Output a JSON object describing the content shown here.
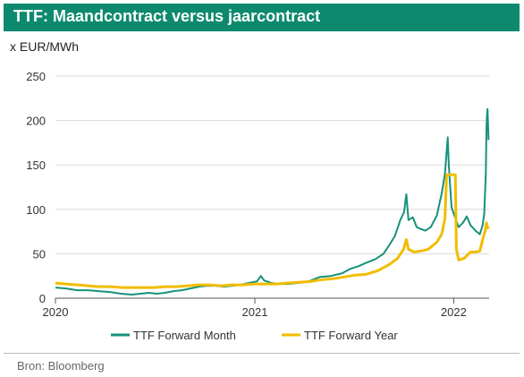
{
  "title": "TTF: Maandcontract versus jaarcontract",
  "unit_label": "x EUR/MWh",
  "source": "Bron: Bloomberg",
  "colors": {
    "accent": "#0d8a6e",
    "month": "#16917a",
    "year": "#f2bc00",
    "grid": "#d9d9d9"
  },
  "chart_data": {
    "type": "line",
    "title": "TTF: Maandcontract versus jaarcontract",
    "ylabel": "x EUR/MWh",
    "xlabel": "",
    "ylim": [
      0,
      250
    ],
    "xlim": [
      "2020-01-01",
      "2022-03-07"
    ],
    "yticks": [
      0,
      50,
      100,
      150,
      200,
      250
    ],
    "xticks": [
      "2020",
      "2021",
      "2022"
    ],
    "xtick_dates": [
      "2020-01-01",
      "2021-01-01",
      "2022-01-01"
    ],
    "grid": true,
    "legend": "bottom",
    "series": [
      {
        "name": "TTF Forward Month",
        "key": "month",
        "points": [
          [
            "2020-01-01",
            12
          ],
          [
            "2020-01-20",
            11
          ],
          [
            "2020-02-10",
            9
          ],
          [
            "2020-03-01",
            9
          ],
          [
            "2020-03-20",
            8
          ],
          [
            "2020-04-10",
            7
          ],
          [
            "2020-05-01",
            5
          ],
          [
            "2020-05-20",
            4
          ],
          [
            "2020-06-05",
            5
          ],
          [
            "2020-06-20",
            6
          ],
          [
            "2020-07-05",
            5
          ],
          [
            "2020-07-20",
            6
          ],
          [
            "2020-08-05",
            8
          ],
          [
            "2020-08-20",
            9
          ],
          [
            "2020-09-05",
            11
          ],
          [
            "2020-09-20",
            13
          ],
          [
            "2020-10-05",
            14
          ],
          [
            "2020-10-20",
            14
          ],
          [
            "2020-11-05",
            13
          ],
          [
            "2020-11-20",
            14
          ],
          [
            "2020-12-05",
            15
          ],
          [
            "2020-12-20",
            17
          ],
          [
            "2021-01-05",
            19
          ],
          [
            "2021-01-12",
            25
          ],
          [
            "2021-01-18",
            20
          ],
          [
            "2021-02-01",
            17
          ],
          [
            "2021-02-15",
            16
          ],
          [
            "2021-03-01",
            16
          ],
          [
            "2021-03-20",
            17
          ],
          [
            "2021-04-10",
            19
          ],
          [
            "2021-05-01",
            24
          ],
          [
            "2021-05-20",
            25
          ],
          [
            "2021-06-10",
            28
          ],
          [
            "2021-06-25",
            33
          ],
          [
            "2021-07-10",
            36
          ],
          [
            "2021-07-25",
            40
          ],
          [
            "2021-08-10",
            44
          ],
          [
            "2021-08-25",
            50
          ],
          [
            "2021-09-05",
            60
          ],
          [
            "2021-09-15",
            70
          ],
          [
            "2021-09-25",
            88
          ],
          [
            "2021-10-02",
            97
          ],
          [
            "2021-10-06",
            117
          ],
          [
            "2021-10-10",
            88
          ],
          [
            "2021-10-18",
            91
          ],
          [
            "2021-10-25",
            80
          ],
          [
            "2021-11-01",
            78
          ],
          [
            "2021-11-10",
            76
          ],
          [
            "2021-11-20",
            80
          ],
          [
            "2021-12-01",
            93
          ],
          [
            "2021-12-10",
            118
          ],
          [
            "2021-12-16",
            140
          ],
          [
            "2021-12-21",
            181
          ],
          [
            "2021-12-23",
            150
          ],
          [
            "2021-12-28",
            102
          ],
          [
            "2022-01-03",
            92
          ],
          [
            "2022-01-10",
            80
          ],
          [
            "2022-01-18",
            85
          ],
          [
            "2022-01-25",
            92
          ],
          [
            "2022-02-01",
            82
          ],
          [
            "2022-02-10",
            76
          ],
          [
            "2022-02-18",
            72
          ],
          [
            "2022-02-23",
            82
          ],
          [
            "2022-02-26",
            95
          ],
          [
            "2022-02-28",
            125
          ],
          [
            "2022-03-01",
            140
          ],
          [
            "2022-03-02",
            190
          ],
          [
            "2022-03-03",
            205
          ],
          [
            "2022-03-04",
            213
          ],
          [
            "2022-03-06",
            178
          ]
        ]
      },
      {
        "name": "TTF Forward Year",
        "key": "year",
        "points": [
          [
            "2020-01-01",
            17
          ],
          [
            "2020-01-20",
            16
          ],
          [
            "2020-02-10",
            15
          ],
          [
            "2020-03-01",
            14
          ],
          [
            "2020-03-20",
            13
          ],
          [
            "2020-04-10",
            13
          ],
          [
            "2020-05-01",
            12
          ],
          [
            "2020-05-20",
            12
          ],
          [
            "2020-06-10",
            12
          ],
          [
            "2020-07-01",
            12
          ],
          [
            "2020-07-20",
            13
          ],
          [
            "2020-08-10",
            13
          ],
          [
            "2020-09-01",
            14
          ],
          [
            "2020-09-20",
            15
          ],
          [
            "2020-10-10",
            15
          ],
          [
            "2020-11-01",
            14
          ],
          [
            "2020-11-20",
            15
          ],
          [
            "2020-12-10",
            15
          ],
          [
            "2021-01-01",
            16
          ],
          [
            "2021-01-20",
            16
          ],
          [
            "2021-02-10",
            16
          ],
          [
            "2021-03-01",
            17
          ],
          [
            "2021-03-25",
            18
          ],
          [
            "2021-04-15",
            19
          ],
          [
            "2021-05-05",
            21
          ],
          [
            "2021-05-25",
            22
          ],
          [
            "2021-06-15",
            24
          ],
          [
            "2021-07-05",
            26
          ],
          [
            "2021-07-25",
            27
          ],
          [
            "2021-08-15",
            31
          ],
          [
            "2021-09-05",
            38
          ],
          [
            "2021-09-20",
            45
          ],
          [
            "2021-10-01",
            55
          ],
          [
            "2021-10-06",
            66
          ],
          [
            "2021-10-10",
            55
          ],
          [
            "2021-10-20",
            52
          ],
          [
            "2021-11-01",
            53
          ],
          [
            "2021-11-15",
            55
          ],
          [
            "2021-12-01",
            63
          ],
          [
            "2021-12-10",
            72
          ],
          [
            "2021-12-16",
            90
          ],
          [
            "2021-12-19",
            139
          ],
          [
            "2021-12-28",
            139
          ],
          [
            "2022-01-04",
            139
          ],
          [
            "2022-01-06",
            55
          ],
          [
            "2022-01-10",
            43
          ],
          [
            "2022-01-20",
            45
          ],
          [
            "2022-02-01",
            52
          ],
          [
            "2022-02-10",
            52
          ],
          [
            "2022-02-18",
            53
          ],
          [
            "2022-02-24",
            68
          ],
          [
            "2022-02-28",
            76
          ],
          [
            "2022-03-02",
            85
          ],
          [
            "2022-03-04",
            80
          ],
          [
            "2022-03-06",
            78
          ]
        ]
      }
    ]
  }
}
